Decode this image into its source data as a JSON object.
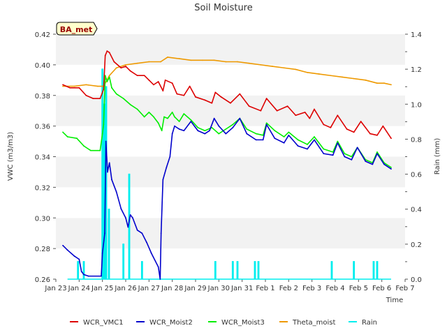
{
  "chart_data": {
    "type": "line",
    "title": "Soil Moisture",
    "site_badge": "BA_met",
    "xlabel": "Time",
    "ylabel_left": "VWC (m3/m3)",
    "ylabel_right": "Rain (mm)",
    "ylim_left": [
      0.26,
      0.42
    ],
    "ylim_right": [
      0.0,
      1.4
    ],
    "xlim_days": [
      0,
      15
    ],
    "x_ticks": [
      {
        "d": 0,
        "label": "Jan 23"
      },
      {
        "d": 1,
        "label": "Jan 24"
      },
      {
        "d": 2,
        "label": "Jan 25"
      },
      {
        "d": 3,
        "label": "Jan 26"
      },
      {
        "d": 4,
        "label": "Jan 27"
      },
      {
        "d": 5,
        "label": "Jan 28"
      },
      {
        "d": 6,
        "label": "Jan 29"
      },
      {
        "d": 7,
        "label": "Jan 30"
      },
      {
        "d": 8,
        "label": "Jan 31"
      },
      {
        "d": 9,
        "label": "Feb 1"
      },
      {
        "d": 10,
        "label": "Feb 2"
      },
      {
        "d": 11,
        "label": "Feb 3"
      },
      {
        "d": 12,
        "label": "Feb 4"
      },
      {
        "d": 13,
        "label": "Feb 5"
      },
      {
        "d": 14,
        "label": "Feb 6"
      },
      {
        "d": 15,
        "label": "Feb 7"
      }
    ],
    "y_ticks_left": [
      "0.26",
      "0.28",
      "0.30",
      "0.32",
      "0.34",
      "0.36",
      "0.38",
      "0.40",
      "0.42"
    ],
    "y_ticks_right": [
      "0.0",
      "0.2",
      "0.4",
      "0.6",
      "0.8",
      "1.0",
      "1.2",
      "1.4"
    ],
    "grid": "horizontal alternating bands",
    "legend_position": "bottom",
    "series": [
      {
        "name": "WCR_VMC1",
        "color": "#dd0000",
        "axis": "left",
        "points": [
          [
            0.3,
            0.387
          ],
          [
            0.6,
            0.385
          ],
          [
            1.0,
            0.385
          ],
          [
            1.3,
            0.38
          ],
          [
            1.6,
            0.378
          ],
          [
            1.9,
            0.378
          ],
          [
            2.05,
            0.384
          ],
          [
            2.12,
            0.406
          ],
          [
            2.2,
            0.409
          ],
          [
            2.3,
            0.408
          ],
          [
            2.5,
            0.402
          ],
          [
            2.8,
            0.398
          ],
          [
            3.0,
            0.399
          ],
          [
            3.2,
            0.396
          ],
          [
            3.5,
            0.393
          ],
          [
            3.8,
            0.393
          ],
          [
            4.0,
            0.39
          ],
          [
            4.2,
            0.387
          ],
          [
            4.4,
            0.389
          ],
          [
            4.6,
            0.383
          ],
          [
            4.7,
            0.39
          ],
          [
            5.0,
            0.388
          ],
          [
            5.2,
            0.381
          ],
          [
            5.5,
            0.38
          ],
          [
            5.75,
            0.386
          ],
          [
            6.0,
            0.379
          ],
          [
            6.4,
            0.377
          ],
          [
            6.7,
            0.375
          ],
          [
            6.85,
            0.382
          ],
          [
            7.1,
            0.379
          ],
          [
            7.5,
            0.375
          ],
          [
            7.9,
            0.381
          ],
          [
            8.3,
            0.373
          ],
          [
            8.8,
            0.37
          ],
          [
            9.05,
            0.378
          ],
          [
            9.5,
            0.37
          ],
          [
            9.95,
            0.373
          ],
          [
            10.3,
            0.367
          ],
          [
            10.7,
            0.369
          ],
          [
            10.9,
            0.365
          ],
          [
            11.1,
            0.371
          ],
          [
            11.5,
            0.361
          ],
          [
            11.8,
            0.359
          ],
          [
            12.1,
            0.367
          ],
          [
            12.5,
            0.358
          ],
          [
            12.8,
            0.356
          ],
          [
            13.1,
            0.363
          ],
          [
            13.5,
            0.355
          ],
          [
            13.8,
            0.354
          ],
          [
            14.05,
            0.36
          ],
          [
            14.4,
            0.352
          ]
        ]
      },
      {
        "name": "WCR_Moist2",
        "color": "#0000cc",
        "axis": "left",
        "points": [
          [
            0.3,
            0.282
          ],
          [
            0.5,
            0.279
          ],
          [
            0.8,
            0.275
          ],
          [
            1.0,
            0.273
          ],
          [
            1.1,
            0.265
          ],
          [
            1.2,
            0.263
          ],
          [
            1.4,
            0.262
          ],
          [
            1.95,
            0.262
          ],
          [
            2.0,
            0.277
          ],
          [
            2.1,
            0.29
          ],
          [
            2.15,
            0.35
          ],
          [
            2.22,
            0.33
          ],
          [
            2.3,
            0.336
          ],
          [
            2.4,
            0.325
          ],
          [
            2.6,
            0.317
          ],
          [
            2.8,
            0.306
          ],
          [
            3.0,
            0.3
          ],
          [
            3.1,
            0.294
          ],
          [
            3.2,
            0.302
          ],
          [
            3.3,
            0.3
          ],
          [
            3.5,
            0.292
          ],
          [
            3.7,
            0.29
          ],
          [
            3.9,
            0.284
          ],
          [
            4.1,
            0.277
          ],
          [
            4.4,
            0.268
          ],
          [
            4.48,
            0.26
          ],
          [
            4.52,
            0.29
          ],
          [
            4.6,
            0.325
          ],
          [
            4.75,
            0.333
          ],
          [
            4.9,
            0.34
          ],
          [
            5.0,
            0.355
          ],
          [
            5.1,
            0.36
          ],
          [
            5.3,
            0.358
          ],
          [
            5.5,
            0.357
          ],
          [
            5.8,
            0.363
          ],
          [
            6.1,
            0.357
          ],
          [
            6.4,
            0.355
          ],
          [
            6.6,
            0.357
          ],
          [
            6.8,
            0.365
          ],
          [
            7.0,
            0.36
          ],
          [
            7.3,
            0.355
          ],
          [
            7.6,
            0.359
          ],
          [
            7.9,
            0.365
          ],
          [
            8.2,
            0.355
          ],
          [
            8.6,
            0.351
          ],
          [
            8.9,
            0.351
          ],
          [
            9.05,
            0.361
          ],
          [
            9.4,
            0.352
          ],
          [
            9.8,
            0.349
          ],
          [
            10.0,
            0.354
          ],
          [
            10.4,
            0.347
          ],
          [
            10.8,
            0.345
          ],
          [
            11.1,
            0.351
          ],
          [
            11.5,
            0.342
          ],
          [
            11.9,
            0.341
          ],
          [
            12.1,
            0.349
          ],
          [
            12.4,
            0.34
          ],
          [
            12.7,
            0.338
          ],
          [
            12.95,
            0.346
          ],
          [
            13.3,
            0.337
          ],
          [
            13.6,
            0.335
          ],
          [
            13.8,
            0.342
          ],
          [
            14.1,
            0.335
          ],
          [
            14.4,
            0.332
          ]
        ]
      },
      {
        "name": "WCR_Moist3",
        "color": "#00ee00",
        "axis": "left",
        "points": [
          [
            0.3,
            0.356
          ],
          [
            0.5,
            0.353
          ],
          [
            0.9,
            0.352
          ],
          [
            1.2,
            0.347
          ],
          [
            1.5,
            0.344
          ],
          [
            1.9,
            0.344
          ],
          [
            2.0,
            0.355
          ],
          [
            2.05,
            0.361
          ],
          [
            2.12,
            0.393
          ],
          [
            2.2,
            0.389
          ],
          [
            2.3,
            0.392
          ],
          [
            2.4,
            0.385
          ],
          [
            2.6,
            0.381
          ],
          [
            2.9,
            0.378
          ],
          [
            3.2,
            0.374
          ],
          [
            3.5,
            0.371
          ],
          [
            3.8,
            0.366
          ],
          [
            4.0,
            0.369
          ],
          [
            4.2,
            0.366
          ],
          [
            4.4,
            0.362
          ],
          [
            4.55,
            0.357
          ],
          [
            4.65,
            0.366
          ],
          [
            4.8,
            0.365
          ],
          [
            5.0,
            0.369
          ],
          [
            5.1,
            0.366
          ],
          [
            5.3,
            0.363
          ],
          [
            5.5,
            0.368
          ],
          [
            5.8,
            0.364
          ],
          [
            6.1,
            0.359
          ],
          [
            6.4,
            0.357
          ],
          [
            6.7,
            0.359
          ],
          [
            7.0,
            0.355
          ],
          [
            7.3,
            0.358
          ],
          [
            7.6,
            0.361
          ],
          [
            7.9,
            0.365
          ],
          [
            8.2,
            0.358
          ],
          [
            8.6,
            0.355
          ],
          [
            8.9,
            0.354
          ],
          [
            9.05,
            0.362
          ],
          [
            9.4,
            0.357
          ],
          [
            9.8,
            0.353
          ],
          [
            10.0,
            0.356
          ],
          [
            10.4,
            0.351
          ],
          [
            10.8,
            0.348
          ],
          [
            11.1,
            0.353
          ],
          [
            11.5,
            0.345
          ],
          [
            11.9,
            0.343
          ],
          [
            12.1,
            0.35
          ],
          [
            12.4,
            0.342
          ],
          [
            12.7,
            0.34
          ],
          [
            12.95,
            0.346
          ],
          [
            13.3,
            0.338
          ],
          [
            13.6,
            0.336
          ],
          [
            13.8,
            0.343
          ],
          [
            14.1,
            0.336
          ],
          [
            14.4,
            0.333
          ]
        ]
      },
      {
        "name": "Theta_moist",
        "color": "#ee9900",
        "axis": "left",
        "points": [
          [
            0.3,
            0.386
          ],
          [
            0.8,
            0.386
          ],
          [
            1.3,
            0.387
          ],
          [
            1.8,
            0.386
          ],
          [
            2.05,
            0.386
          ],
          [
            2.3,
            0.393
          ],
          [
            2.6,
            0.398
          ],
          [
            3.0,
            0.4
          ],
          [
            3.5,
            0.401
          ],
          [
            4.0,
            0.402
          ],
          [
            4.5,
            0.402
          ],
          [
            4.8,
            0.405
          ],
          [
            5.3,
            0.404
          ],
          [
            5.8,
            0.403
          ],
          [
            6.3,
            0.403
          ],
          [
            6.8,
            0.403
          ],
          [
            7.3,
            0.402
          ],
          [
            7.8,
            0.402
          ],
          [
            8.3,
            0.401
          ],
          [
            8.8,
            0.4
          ],
          [
            9.3,
            0.399
          ],
          [
            9.8,
            0.398
          ],
          [
            10.3,
            0.397
          ],
          [
            10.8,
            0.395
          ],
          [
            11.3,
            0.394
          ],
          [
            11.8,
            0.393
          ],
          [
            12.3,
            0.392
          ],
          [
            12.8,
            0.391
          ],
          [
            13.3,
            0.39
          ],
          [
            13.8,
            0.388
          ],
          [
            14.1,
            0.388
          ],
          [
            14.4,
            0.387
          ]
        ]
      },
      {
        "name": "Rain",
        "color": "#00eeee",
        "axis": "right",
        "spikes": [
          [
            0.95,
            0.1
          ],
          [
            1.2,
            0.1
          ],
          [
            2.0,
            1.2
          ],
          [
            2.08,
            1.0
          ],
          [
            2.16,
            1.1
          ],
          [
            2.28,
            0.4
          ],
          [
            2.9,
            0.2
          ],
          [
            3.15,
            0.6
          ],
          [
            3.7,
            0.1
          ],
          [
            6.85,
            0.1
          ],
          [
            7.6,
            0.1
          ],
          [
            7.8,
            0.1
          ],
          [
            8.55,
            0.1
          ],
          [
            8.7,
            0.1
          ],
          [
            11.85,
            0.1
          ],
          [
            12.8,
            0.1
          ],
          [
            13.65,
            0.1
          ],
          [
            13.8,
            0.1
          ]
        ]
      }
    ]
  }
}
